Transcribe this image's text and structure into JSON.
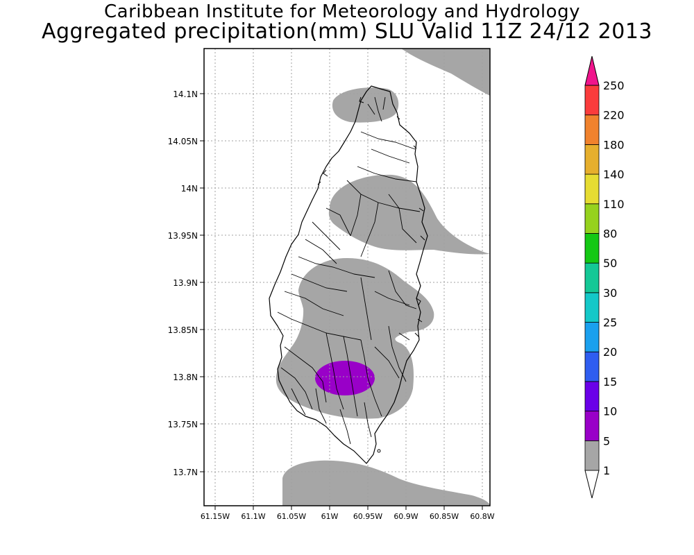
{
  "title": {
    "line1": "Caribbean Institute for Meteorology and Hydrology",
    "line2": "Aggregated precipitation(mm) SLU Valid 11Z 24/12 2013"
  },
  "map": {
    "lat_labels": [
      "14.1N",
      "14.05N",
      "14N",
      "13.95N",
      "13.9N",
      "13.85N",
      "13.8N",
      "13.75N",
      "13.7N"
    ],
    "lon_labels": [
      "61.15W",
      "61.1W",
      "61.05W",
      "61W",
      "60.95W",
      "60.9W",
      "60.85W",
      "60.8W"
    ],
    "shaded_color": "#a6a6a6",
    "max_color": "#9900c8"
  },
  "legend": {
    "levels": [
      "1",
      "5",
      "10",
      "15",
      "20",
      "25",
      "30",
      "50",
      "80",
      "110",
      "140",
      "180",
      "220",
      "250"
    ],
    "colors": [
      "#ffffff",
      "#a6a6a6",
      "#9900c8",
      "#6a00e8",
      "#2f5df0",
      "#1aa0ee",
      "#14c8c8",
      "#14c896",
      "#14c814",
      "#96d21e",
      "#e6dc32",
      "#e6af2d",
      "#f0822d",
      "#fa3c3c",
      "#f0148c"
    ]
  }
}
